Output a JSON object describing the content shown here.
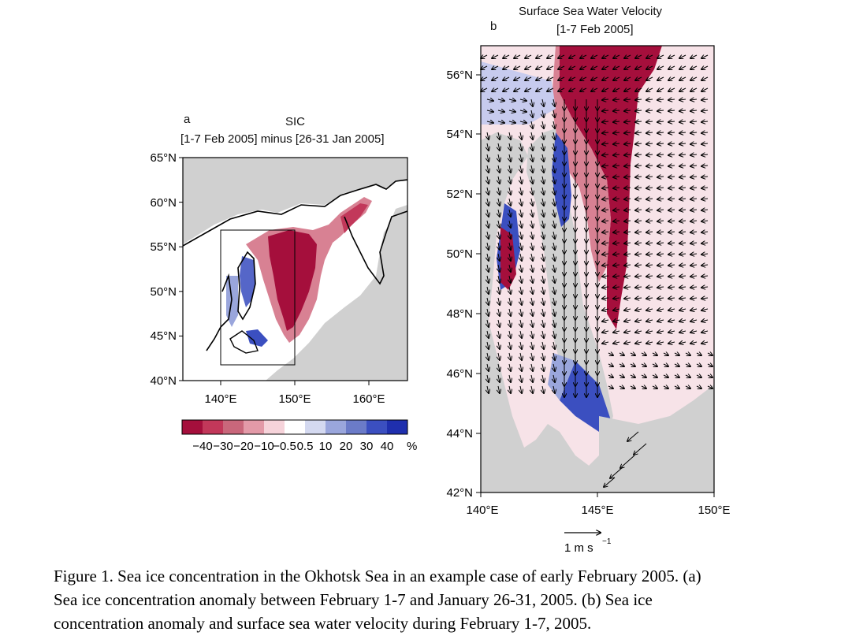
{
  "panel_a": {
    "letter": "a",
    "title": "SIC",
    "subtitle": "[1-7 Feb 2005] minus [26-31 Jan 2005]",
    "lat_ticks": [
      "65°N",
      "60°N",
      "55°N",
      "50°N",
      "45°N",
      "40°N"
    ],
    "lon_ticks": [
      "140°E",
      "150°E",
      "160°E"
    ],
    "colorbar": {
      "labels": [
        "−40",
        "−30",
        "−20",
        "−10",
        "−0.5",
        "0.5",
        "10",
        "20",
        "30",
        "40"
      ],
      "unit": "%",
      "colors": [
        "#a50f3c",
        "#c2385a",
        "#c9677b",
        "#e39aa8",
        "#f6d3da",
        "#ffffff",
        "#d4d9f0",
        "#9aa6dc",
        "#6b7bc8",
        "#3b4fc0",
        "#1f2fae"
      ]
    }
  },
  "panel_b": {
    "letter": "b",
    "title": "Surface Sea Water Velocity",
    "subtitle": "[1-7 Feb 2005]",
    "lat_ticks": [
      "56°N",
      "54°N",
      "52°N",
      "50°N",
      "48°N",
      "46°N",
      "44°N",
      "42°N"
    ],
    "lon_ticks": [
      "140°E",
      "145°E",
      "150°E"
    ],
    "reference_vector": {
      "label": "1 m s",
      "exponent": "−1"
    }
  },
  "caption": {
    "line1": "Figure 1. Sea ice concentration in the Okhotsk Sea in an example case of early February 2005. (a)",
    "line2": "Sea ice concentration anomaly between February 1-7 and January 26-31, 2005. (b) Sea ice",
    "line3": "concentration anomaly and surface sea water velocity during February 1-7, 2005."
  }
}
